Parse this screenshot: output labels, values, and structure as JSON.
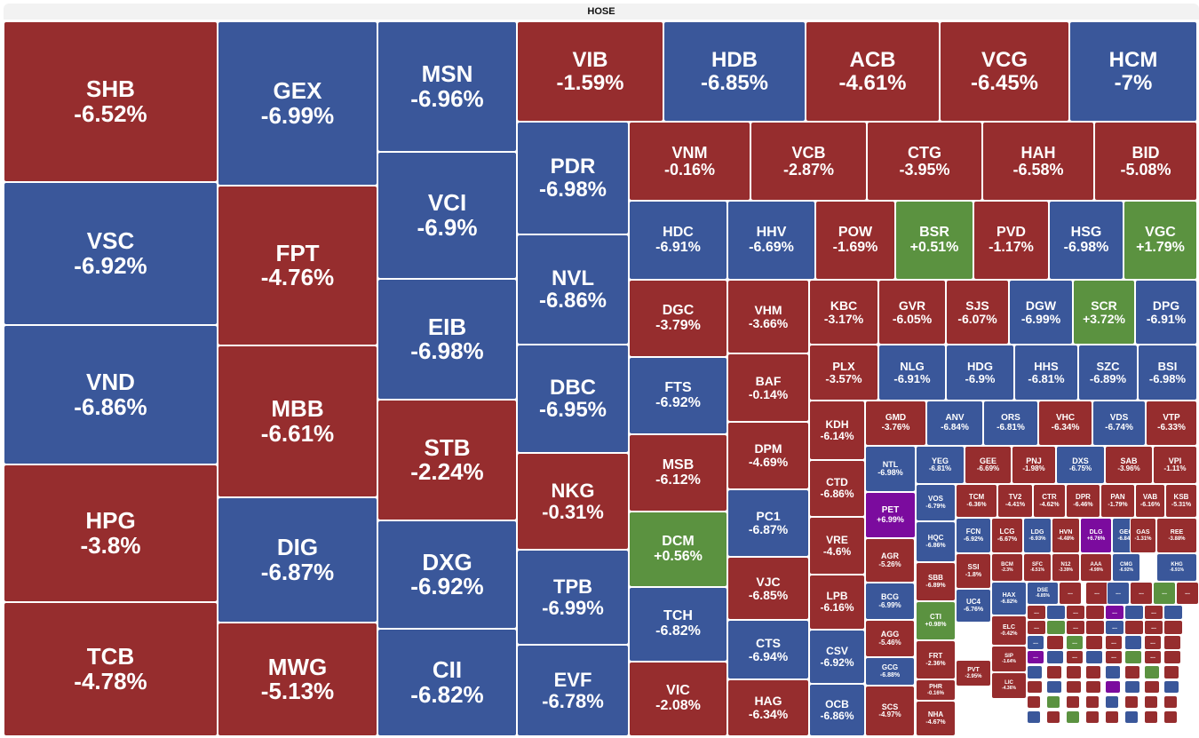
{
  "chart_data": {
    "type": "treemap",
    "title": "HOSE",
    "colors": {
      "down": "#962D2E",
      "floor": "#3A579A",
      "up": "#5B9240",
      "ceiling": "#7B0B9E",
      "ref": "#C59A2E"
    },
    "items": [
      {
        "t": "SHB",
        "v": "-6.52%",
        "c": "down"
      },
      {
        "t": "VSC",
        "v": "-6.92%",
        "c": "floor"
      },
      {
        "t": "VND",
        "v": "-6.86%",
        "c": "floor"
      },
      {
        "t": "HPG",
        "v": "-3.8%",
        "c": "down"
      },
      {
        "t": "TCB",
        "v": "-4.78%",
        "c": "down"
      },
      {
        "t": "GEX",
        "v": "-6.99%",
        "c": "floor"
      },
      {
        "t": "FPT",
        "v": "-4.76%",
        "c": "down"
      },
      {
        "t": "MBB",
        "v": "-6.61%",
        "c": "down"
      },
      {
        "t": "DIG",
        "v": "-6.87%",
        "c": "floor"
      },
      {
        "t": "MWG",
        "v": "-5.13%",
        "c": "down"
      },
      {
        "t": "MSN",
        "v": "-6.96%",
        "c": "floor"
      },
      {
        "t": "VCI",
        "v": "-6.9%",
        "c": "floor"
      },
      {
        "t": "EIB",
        "v": "-6.98%",
        "c": "floor"
      },
      {
        "t": "STB",
        "v": "-2.24%",
        "c": "down"
      },
      {
        "t": "DXG",
        "v": "-6.92%",
        "c": "floor"
      },
      {
        "t": "CII",
        "v": "-6.82%",
        "c": "floor"
      },
      {
        "t": "VIB",
        "v": "-1.59%",
        "c": "down"
      },
      {
        "t": "HDB",
        "v": "-6.85%",
        "c": "floor"
      },
      {
        "t": "ACB",
        "v": "-4.61%",
        "c": "down"
      },
      {
        "t": "VCG",
        "v": "-6.45%",
        "c": "down"
      },
      {
        "t": "HCM",
        "v": "-7%",
        "c": "floor"
      },
      {
        "t": "PDR",
        "v": "-6.98%",
        "c": "floor"
      },
      {
        "t": "NVL",
        "v": "-6.86%",
        "c": "floor"
      },
      {
        "t": "DBC",
        "v": "-6.95%",
        "c": "floor"
      },
      {
        "t": "NKG",
        "v": "-0.31%",
        "c": "down"
      },
      {
        "t": "TPB",
        "v": "-6.99%",
        "c": "floor"
      },
      {
        "t": "EVF",
        "v": "-6.78%",
        "c": "floor"
      },
      {
        "t": "VNM",
        "v": "-0.16%",
        "c": "down"
      },
      {
        "t": "VCB",
        "v": "-2.87%",
        "c": "down"
      },
      {
        "t": "CTG",
        "v": "-3.95%",
        "c": "down"
      },
      {
        "t": "HAH",
        "v": "-6.58%",
        "c": "down"
      },
      {
        "t": "BID",
        "v": "-5.08%",
        "c": "down"
      },
      {
        "t": "HDC",
        "v": "-6.91%",
        "c": "floor"
      },
      {
        "t": "HHV",
        "v": "-6.69%",
        "c": "floor"
      },
      {
        "t": "POW",
        "v": "-1.69%",
        "c": "down"
      },
      {
        "t": "BSR",
        "v": "+0.51%",
        "c": "up"
      },
      {
        "t": "PVD",
        "v": "-1.17%",
        "c": "down"
      },
      {
        "t": "HSG",
        "v": "-6.98%",
        "c": "floor"
      },
      {
        "t": "VGC",
        "v": "+1.79%",
        "c": "up"
      },
      {
        "t": "DGC",
        "v": "-3.79%",
        "c": "down"
      },
      {
        "t": "FTS",
        "v": "-6.92%",
        "c": "floor"
      },
      {
        "t": "MSB",
        "v": "-6.12%",
        "c": "down"
      },
      {
        "t": "DCM",
        "v": "+0.56%",
        "c": "up"
      },
      {
        "t": "TCH",
        "v": "-6.82%",
        "c": "floor"
      },
      {
        "t": "VIC",
        "v": "-2.08%",
        "c": "down"
      },
      {
        "t": "VHM",
        "v": "-3.66%",
        "c": "down"
      },
      {
        "t": "BAF",
        "v": "-0.14%",
        "c": "down"
      },
      {
        "t": "DPM",
        "v": "-4.69%",
        "c": "down"
      },
      {
        "t": "PC1",
        "v": "-6.87%",
        "c": "floor"
      },
      {
        "t": "VJC",
        "v": "-6.85%",
        "c": "down"
      },
      {
        "t": "CTS",
        "v": "-6.94%",
        "c": "floor"
      },
      {
        "t": "HAG",
        "v": "-6.34%",
        "c": "down"
      },
      {
        "t": "KBC",
        "v": "-3.17%",
        "c": "down"
      },
      {
        "t": "GVR",
        "v": "-6.05%",
        "c": "down"
      },
      {
        "t": "SJS",
        "v": "-6.07%",
        "c": "down"
      },
      {
        "t": "DGW",
        "v": "-6.99%",
        "c": "floor"
      },
      {
        "t": "SCR",
        "v": "+3.72%",
        "c": "up"
      },
      {
        "t": "DPG",
        "v": "-6.91%",
        "c": "floor"
      },
      {
        "t": "PLX",
        "v": "-3.57%",
        "c": "down"
      },
      {
        "t": "NLG",
        "v": "-6.91%",
        "c": "floor"
      },
      {
        "t": "HDG",
        "v": "-6.9%",
        "c": "floor"
      },
      {
        "t": "HHS",
        "v": "-6.81%",
        "c": "floor"
      },
      {
        "t": "SZC",
        "v": "-6.89%",
        "c": "floor"
      },
      {
        "t": "BSI",
        "v": "-6.98%",
        "c": "floor"
      },
      {
        "t": "KDH",
        "v": "-6.14%",
        "c": "down"
      },
      {
        "t": "CTD",
        "v": "-6.86%",
        "c": "down"
      },
      {
        "t": "VRE",
        "v": "-4.6%",
        "c": "down"
      },
      {
        "t": "LPB",
        "v": "-6.16%",
        "c": "down"
      },
      {
        "t": "CSV",
        "v": "-6.92%",
        "c": "floor"
      },
      {
        "t": "OCB",
        "v": "-6.86%",
        "c": "floor"
      },
      {
        "t": "GMD",
        "v": "-3.76%",
        "c": "down"
      },
      {
        "t": "ANV",
        "v": "-6.84%",
        "c": "floor"
      },
      {
        "t": "ORS",
        "v": "-6.81%",
        "c": "floor"
      },
      {
        "t": "VHC",
        "v": "-6.34%",
        "c": "down"
      },
      {
        "t": "VDS",
        "v": "-6.74%",
        "c": "floor"
      },
      {
        "t": "VTP",
        "v": "-6.33%",
        "c": "down"
      },
      {
        "t": "NTL",
        "v": "-6.98%",
        "c": "floor"
      },
      {
        "t": "YEG",
        "v": "-6.81%",
        "c": "floor"
      },
      {
        "t": "GEE",
        "v": "-6.69%",
        "c": "down"
      },
      {
        "t": "PNJ",
        "v": "-1.98%",
        "c": "down"
      },
      {
        "t": "DXS",
        "v": "-6.75%",
        "c": "floor"
      },
      {
        "t": "SAB",
        "v": "-3.96%",
        "c": "down"
      },
      {
        "t": "VPI",
        "v": "-1.11%",
        "c": "down"
      },
      {
        "t": "PET",
        "v": "+6.99%",
        "c": "ceiling"
      },
      {
        "t": "VOS",
        "v": "-6.79%",
        "c": "floor"
      },
      {
        "t": "TCM",
        "v": "-6.36%",
        "c": "down"
      },
      {
        "t": "TV2",
        "v": "-4.41%",
        "c": "down"
      },
      {
        "t": "CTR",
        "v": "-4.62%",
        "c": "down"
      },
      {
        "t": "DPR",
        "v": "-6.46%",
        "c": "down"
      },
      {
        "t": "PAN",
        "v": "-1.79%",
        "c": "down"
      },
      {
        "t": "VAB",
        "v": "-6.16%",
        "c": "down"
      },
      {
        "t": "KSB",
        "v": "-5.31%",
        "c": "down"
      },
      {
        "t": "AGR",
        "v": "-5.26%",
        "c": "down"
      },
      {
        "t": "HQC",
        "v": "-6.86%",
        "c": "floor"
      },
      {
        "t": "FCN",
        "v": "-6.92%",
        "c": "floor"
      },
      {
        "t": "LCG",
        "v": "-6.67%",
        "c": "down"
      },
      {
        "t": "LDG",
        "v": "-6.93%",
        "c": "floor"
      },
      {
        "t": "HVN",
        "v": "-4.48%",
        "c": "down"
      },
      {
        "t": "DLG",
        "v": "+6.76%",
        "c": "ceiling"
      },
      {
        "t": "GEG",
        "v": "-6.84%",
        "c": "floor"
      },
      {
        "t": "GAS",
        "v": "-1.31%",
        "c": "down"
      },
      {
        "t": "REE",
        "v": "-3.88%",
        "c": "down"
      },
      {
        "t": "BCG",
        "v": "-6.99%",
        "c": "floor"
      },
      {
        "t": "SBB",
        "v": "-6.89%",
        "c": "down"
      },
      {
        "t": "SSI",
        "v": "-1.8%",
        "c": "down"
      },
      {
        "t": "BCM",
        "v": "-2.3%",
        "c": "down"
      },
      {
        "t": "SFC",
        "v": "-6.51%",
        "c": "down"
      },
      {
        "t": "N12",
        "v": "-3.39%",
        "c": "down"
      },
      {
        "t": "AAA",
        "v": "-4.99%",
        "c": "down"
      },
      {
        "t": "CMG",
        "v": "-6.92%",
        "c": "floor"
      },
      {
        "t": "KHG",
        "v": "-6.91%",
        "c": "floor"
      },
      {
        "t": "AGG",
        "v": "-5.46%",
        "c": "down"
      },
      {
        "t": "UC4",
        "v": "-6.76%",
        "c": "floor"
      },
      {
        "t": "HAX",
        "v": "-6.82%",
        "c": "floor"
      },
      {
        "t": "DSE",
        "v": "-6.85%",
        "c": "floor"
      },
      {
        "t": "CTI",
        "v": "+0.98%",
        "c": "up"
      },
      {
        "t": "ELC",
        "v": "-0.42%",
        "c": "down"
      },
      {
        "t": "GCG",
        "v": "-6.88%",
        "c": "floor"
      },
      {
        "t": "FRT",
        "v": "-2.36%",
        "c": "down"
      },
      {
        "t": "SIP",
        "v": "-1.64%",
        "c": "down"
      },
      {
        "t": "PHR",
        "v": "-0.16%",
        "c": "down"
      },
      {
        "t": "PVT",
        "v": "-2.95%",
        "c": "down"
      },
      {
        "t": "LIC",
        "v": "-4.36%",
        "c": "down"
      },
      {
        "t": "SCS",
        "v": "-4.97%",
        "c": "down"
      },
      {
        "t": "NHA",
        "v": "-4.67%",
        "c": "down"
      }
    ],
    "ellipsis_label": "..."
  }
}
